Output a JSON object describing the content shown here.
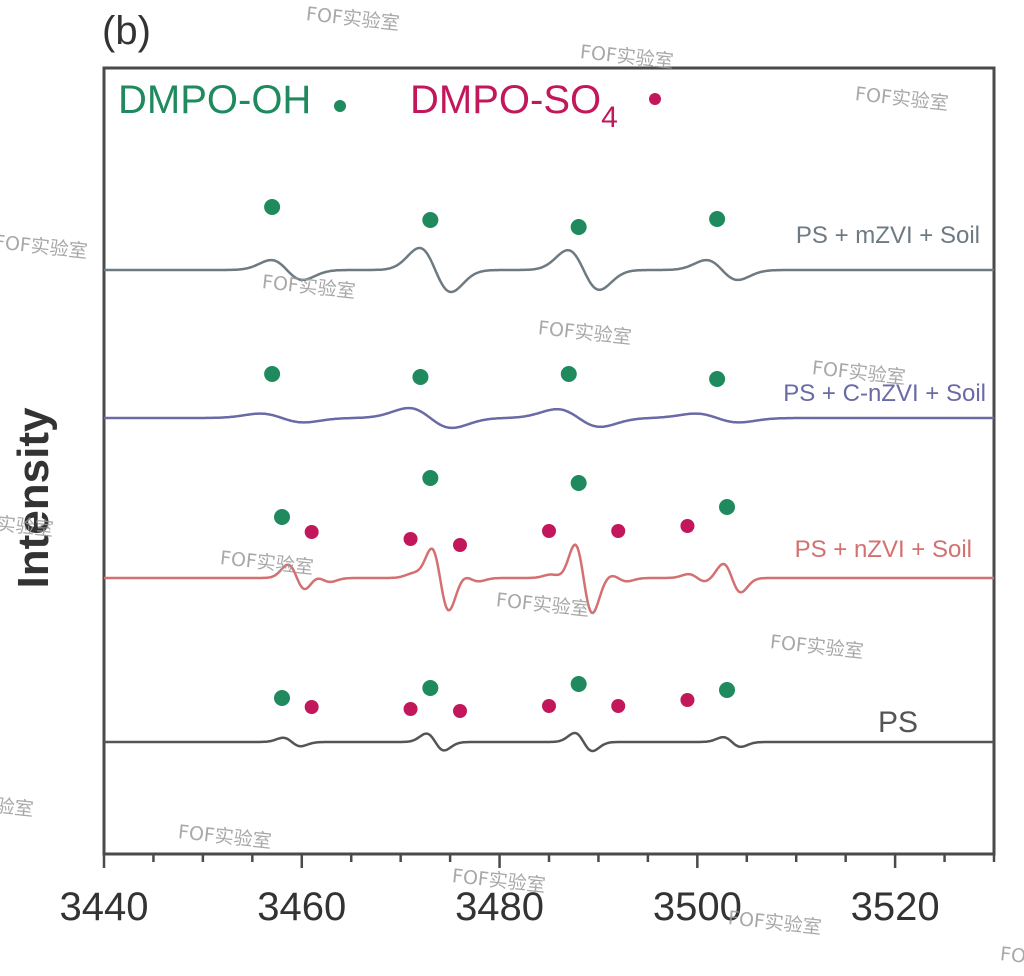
{
  "panel_label": "(b)",
  "watermark": "FOF实验室",
  "legend": {
    "oh_text": "DMPO-OH",
    "so4_prefix": "DMPO-SO",
    "so4_sub": "4",
    "oh_color": "#1f8a5e",
    "so4_color": "#c2185b"
  },
  "chart_data": {
    "type": "line",
    "title": "",
    "xlabel": "",
    "ylabel": "Intensity",
    "xlim": [
      3440,
      3530
    ],
    "xticks": [
      3440,
      3460,
      3480,
      3500,
      3520
    ],
    "grid": false,
    "y_ticks_shown": false,
    "legend_position": "top-left",
    "series": [
      {
        "name": "PS + mZVI + Soil",
        "color": "#6e7a82",
        "oh_peaks": [
          3457,
          3473,
          3488,
          3502
        ],
        "so4_peaks": [],
        "signal": [
          {
            "center": 3458.5,
            "amp": 0.45,
            "width": 1.6
          },
          {
            "center": 3473.5,
            "amp": 1.0,
            "width": 1.6
          },
          {
            "center": 3488.5,
            "amp": 0.9,
            "width": 1.6
          },
          {
            "center": 3502.5,
            "amp": 0.45,
            "width": 1.6
          }
        ]
      },
      {
        "name": "PS + C-nZVI + Soil",
        "color": "#6a6aa6",
        "oh_peaks": [
          3457,
          3472,
          3487,
          3502
        ],
        "so4_peaks": [],
        "signal": [
          {
            "center": 3458,
            "amp": 0.2,
            "width": 2.2
          },
          {
            "center": 3473,
            "amp": 0.45,
            "width": 2.2
          },
          {
            "center": 3488,
            "amp": 0.4,
            "width": 2.2
          },
          {
            "center": 3502,
            "amp": 0.2,
            "width": 2.2
          }
        ]
      },
      {
        "name": "PS + nZVI + Soil",
        "color": "#d47070",
        "oh_peaks": [
          3458,
          3473,
          3488,
          3503
        ],
        "so4_peaks": [
          3461,
          3471,
          3476,
          3485,
          3492,
          3499
        ],
        "signal": [
          {
            "center": 3459.5,
            "amp": 1.2,
            "width": 0.9
          },
          {
            "center": 3474,
            "amp": 3.0,
            "width": 0.9
          },
          {
            "center": 3488.5,
            "amp": 3.2,
            "width": 0.9
          },
          {
            "center": 3503.5,
            "amp": 1.3,
            "width": 0.9
          },
          {
            "center": 3462,
            "amp": 0.35,
            "width": 0.9
          },
          {
            "center": 3472,
            "amp": 0.35,
            "width": 0.9
          },
          {
            "center": 3477,
            "amp": 0.3,
            "width": 0.9
          },
          {
            "center": 3486,
            "amp": 0.3,
            "width": 0.9
          },
          {
            "center": 3492,
            "amp": 0.3,
            "width": 0.9
          },
          {
            "center": 3500,
            "amp": 0.35,
            "width": 0.9
          }
        ]
      },
      {
        "name": "PS",
        "color": "#555555",
        "oh_peaks": [
          3458,
          3473,
          3488,
          3503
        ],
        "so4_peaks": [
          3461,
          3471,
          3476,
          3485,
          3492,
          3499
        ],
        "signal": [
          {
            "center": 3459,
            "amp": 0.35,
            "width": 0.9
          },
          {
            "center": 3473.5,
            "amp": 0.7,
            "width": 0.9
          },
          {
            "center": 3488.5,
            "amp": 0.75,
            "width": 0.9
          },
          {
            "center": 3503.5,
            "amp": 0.4,
            "width": 0.9
          }
        ]
      }
    ]
  }
}
